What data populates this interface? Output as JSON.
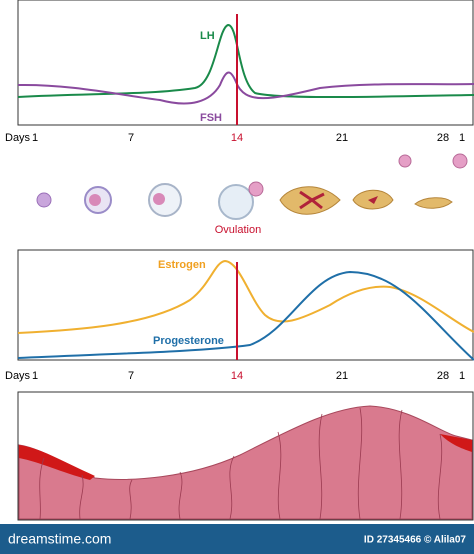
{
  "hormones_top": {
    "lh": "LH",
    "fsh": "FSH"
  },
  "days_axis_top": {
    "label": "Days",
    "days": [
      "1",
      "7",
      "14",
      "21",
      "28",
      "1"
    ]
  },
  "ovulation": "Ovulation",
  "hormones_bottom": {
    "estrogen": "Estrogen",
    "progesterone": "Progesterone"
  },
  "days_axis_bottom": {
    "label": "Days",
    "days": [
      "1",
      "7",
      "14",
      "21",
      "28",
      "1"
    ]
  },
  "footer": {
    "site": "dreamstime.com",
    "id": "ID 27345466 © Alila07"
  }
}
